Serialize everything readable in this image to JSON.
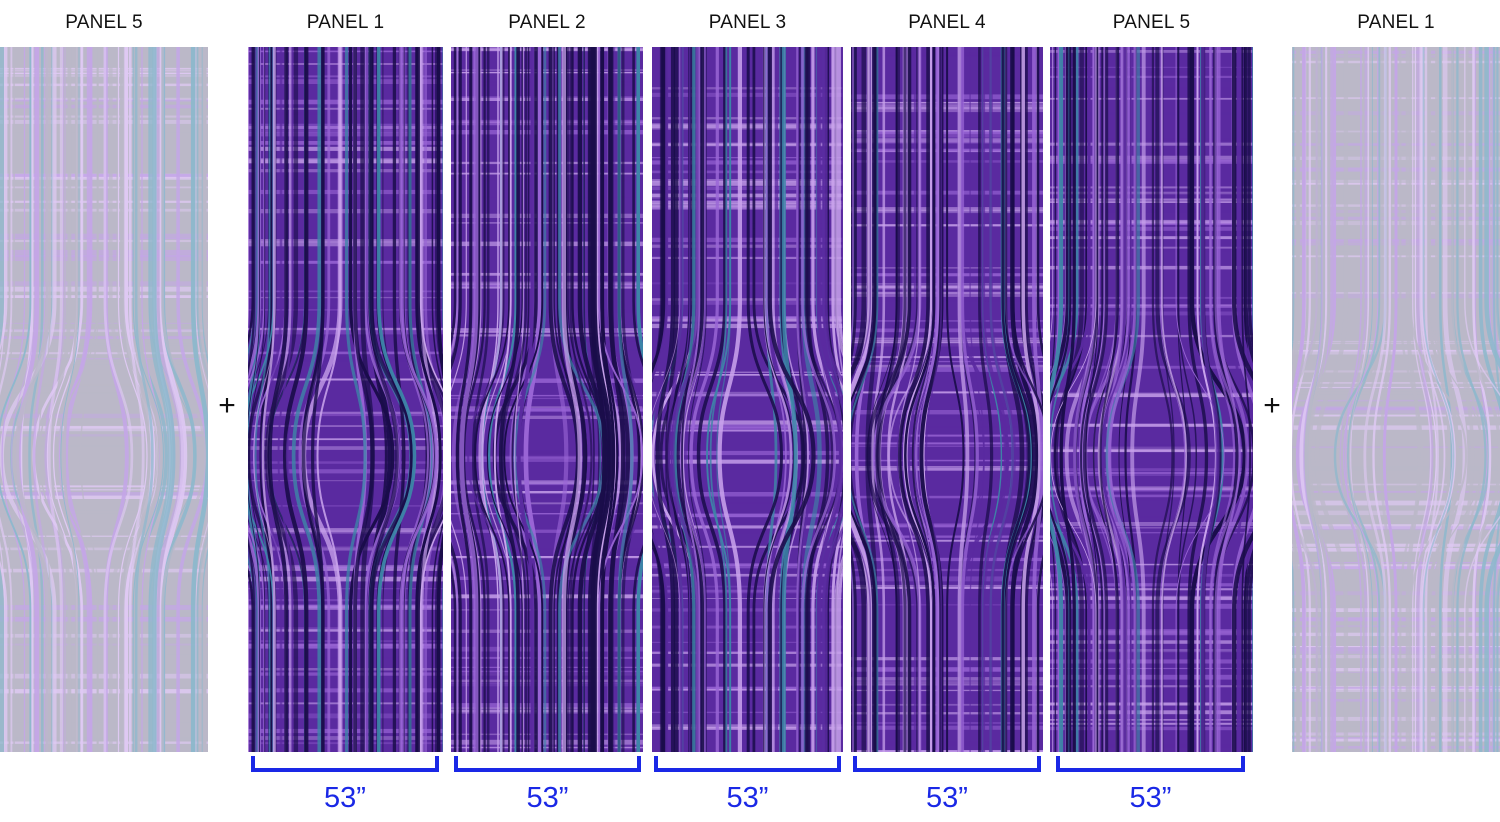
{
  "panels": [
    {
      "label": "PANEL 5",
      "variant": "ghost"
    },
    {
      "label": "PANEL 1",
      "variant": "main"
    },
    {
      "label": "PANEL 2",
      "variant": "main"
    },
    {
      "label": "PANEL 3",
      "variant": "main"
    },
    {
      "label": "PANEL 4",
      "variant": "main"
    },
    {
      "label": "PANEL 5",
      "variant": "main"
    },
    {
      "label": "PANEL 1",
      "variant": "ghost"
    }
  ],
  "joins": [
    "+",
    "+"
  ],
  "widths": [
    "53”",
    "53”",
    "53”",
    "53”",
    "53”"
  ],
  "colors": {
    "deep": "#1a0d4a",
    "purple": "#5a2aa0",
    "violet": "#9a66d6",
    "lavender": "#c9a3ec",
    "teal": "#3d86a8",
    "grey": "#8a86a0",
    "dimension": "#1a28e6"
  }
}
